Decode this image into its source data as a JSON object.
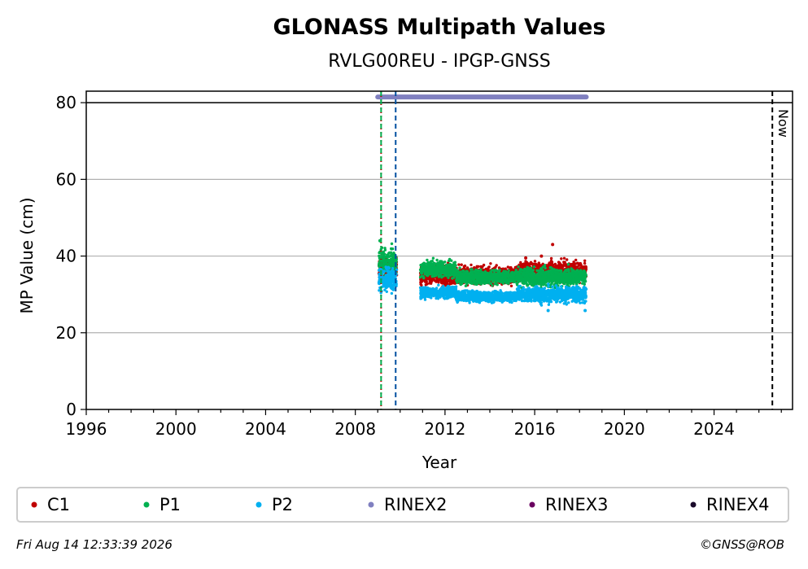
{
  "chart_data": {
    "type": "scatter",
    "title": "GLONASS Multipath Values",
    "subtitle": "RVLG00REU - IPGP-GNSS",
    "xlabel": "Year",
    "ylabel": "MP Value (cm)",
    "xlim": [
      1996,
      2027.5
    ],
    "ylim": [
      0,
      83
    ],
    "xticks": [
      "1996",
      "2000",
      "2004",
      "2008",
      "2012",
      "2016",
      "2020",
      "2024"
    ],
    "yticks": [
      "0",
      "20",
      "40",
      "60",
      "80"
    ],
    "grid": "horizontal",
    "legend_placement": "bottom",
    "series": [
      {
        "name": "C1",
        "color": "#c00000",
        "marker": "dot",
        "segments": [
          {
            "x": [
              2009.05,
              2009.85
            ],
            "y_center": 36.5,
            "y_spread": 2.5
          },
          {
            "x": [
              2010.9,
              2015.2
            ],
            "y_center": 35.0,
            "y_spread": 2.0
          },
          {
            "x": [
              2015.2,
              2018.3
            ],
            "y_center": 36.0,
            "y_spread": 2.2
          }
        ],
        "outliers": [
          {
            "x": 2016.8,
            "y": 43.0
          },
          {
            "x": 2016.3,
            "y": 40.0
          },
          {
            "x": 2015.6,
            "y": 39.5
          }
        ]
      },
      {
        "name": "P1",
        "color": "#00b050",
        "marker": "dot",
        "segments": [
          {
            "x": [
              2009.05,
              2009.85
            ],
            "y_center": 38.5,
            "y_spread": 3.0
          },
          {
            "x": [
              2010.9,
              2012.5
            ],
            "y_center": 36.5,
            "y_spread": 1.8
          },
          {
            "x": [
              2012.5,
              2015.2
            ],
            "y_center": 34.5,
            "y_spread": 1.5
          },
          {
            "x": [
              2015.2,
              2018.3
            ],
            "y_center": 34.5,
            "y_spread": 2.0
          }
        ],
        "outliers": [
          {
            "x": 2009.1,
            "y": 44.0
          }
        ]
      },
      {
        "name": "P2",
        "color": "#00b0f0",
        "marker": "dot",
        "segments": [
          {
            "x": [
              2009.05,
              2009.85
            ],
            "y_center": 34.0,
            "y_spread": 2.8
          },
          {
            "x": [
              2010.9,
              2012.5
            ],
            "y_center": 30.5,
            "y_spread": 1.3
          },
          {
            "x": [
              2012.5,
              2015.2
            ],
            "y_center": 29.5,
            "y_spread": 1.2
          },
          {
            "x": [
              2015.2,
              2018.3
            ],
            "y_center": 30.0,
            "y_spread": 1.8
          }
        ],
        "outliers": [
          {
            "x": 2018.25,
            "y": 25.8
          },
          {
            "x": 2016.6,
            "y": 25.8
          }
        ]
      },
      {
        "name": "RINEX2",
        "color": "#8080c0",
        "marker": "dot",
        "bar": {
          "x": [
            2009.0,
            2018.3
          ],
          "y": 81.5
        }
      },
      {
        "name": "RINEX3",
        "color": "#6a0060",
        "marker": "dot"
      },
      {
        "name": "RINEX4",
        "color": "#1a0a2a",
        "marker": "dot"
      }
    ],
    "vertical_lines": [
      {
        "x": 2009.15,
        "color": "#c00000",
        "style": "dotted"
      },
      {
        "x": 2009.15,
        "color": "#00b050",
        "style": "dashed"
      },
      {
        "x": 2009.8,
        "color": "#0050a0",
        "style": "dashed"
      },
      {
        "x": 2026.6,
        "color": "#000000",
        "style": "dashed",
        "label": "Now"
      }
    ],
    "hlines": [
      {
        "y": 80,
        "color": "#000000"
      }
    ]
  },
  "footer": {
    "timestamp": "Fri Aug 14 12:33:39 2026",
    "copyright": "©GNSS@ROB"
  }
}
